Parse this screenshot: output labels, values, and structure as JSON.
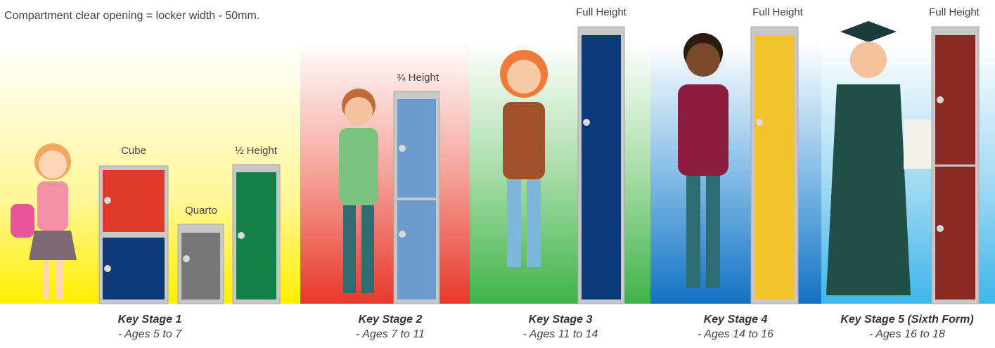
{
  "note": "Compartment clear opening = locker width - 50mm.",
  "stages": [
    {
      "title": "Key Stage 1",
      "ages": "- Ages 5 to 7",
      "lockers": [
        {
          "label": "Cube"
        },
        {
          "label": "Quarto"
        },
        {
          "label": "½ Height"
        }
      ]
    },
    {
      "title": "Key Stage 2",
      "ages": "- Ages 7 to 11",
      "lockers": [
        {
          "label": "¾ Height"
        }
      ]
    },
    {
      "title": "Key Stage 3",
      "ages": "- Ages 11 to 14",
      "lockers": [
        {
          "label": "Full Height"
        }
      ]
    },
    {
      "title": "Key Stage 4",
      "ages": "- Ages 14 to 16",
      "lockers": [
        {
          "label": "Full Height"
        }
      ]
    },
    {
      "title": "Key Stage 5 (Sixth Form)",
      "ages": "- Ages 16 to 18",
      "lockers": [
        {
          "label": "Full Height"
        }
      ]
    }
  ]
}
